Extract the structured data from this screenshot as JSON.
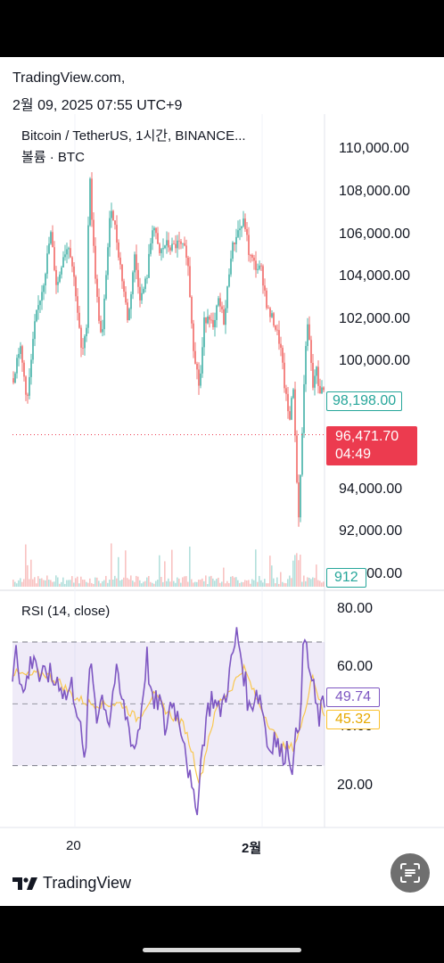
{
  "header": {
    "source": "TradingView.com,",
    "datetime": "2월 09, 2025 07:55 UTC+9"
  },
  "chart_data": [
    {
      "type": "candlestick",
      "title": "Bitcoin / TetherUS, 1시간, BINANCE...",
      "subtitle": "볼륨 · BTC",
      "ylim": [
        89600,
        110800
      ],
      "yticks": [
        "110,000.00",
        "108,000.00",
        "106,000.00",
        "104,000.00",
        "102,000.00",
        "100,000.00",
        "94,000.00",
        "92,000.00",
        "90,000.00"
      ],
      "ytick_values": [
        110000,
        108000,
        106000,
        104000,
        102000,
        100000,
        94000,
        92000,
        90000
      ],
      "xticks": [
        "20",
        "2월"
      ],
      "xtick_positions": [
        0.2,
        0.8
      ],
      "price_path": [
        [
          0,
          99000
        ],
        [
          0.02,
          100500
        ],
        [
          0.045,
          98000
        ],
        [
          0.07,
          101500
        ],
        [
          0.1,
          103500
        ],
        [
          0.12,
          105500
        ],
        [
          0.14,
          103000
        ],
        [
          0.16,
          104500
        ],
        [
          0.18,
          105000
        ],
        [
          0.2,
          103000
        ],
        [
          0.22,
          100000
        ],
        [
          0.235,
          101000
        ],
        [
          0.245,
          108700
        ],
        [
          0.255,
          105500
        ],
        [
          0.27,
          102500
        ],
        [
          0.285,
          100500
        ],
        [
          0.3,
          104000
        ],
        [
          0.315,
          106800
        ],
        [
          0.33,
          105500
        ],
        [
          0.35,
          103500
        ],
        [
          0.37,
          101500
        ],
        [
          0.39,
          104500
        ],
        [
          0.41,
          102500
        ],
        [
          0.43,
          103500
        ],
        [
          0.45,
          106000
        ],
        [
          0.47,
          104500
        ],
        [
          0.49,
          105000
        ],
        [
          0.51,
          104800
        ],
        [
          0.53,
          105000
        ],
        [
          0.56,
          104600
        ],
        [
          0.58,
          100500
        ],
        [
          0.595,
          99000
        ],
        [
          0.6,
          98500
        ],
        [
          0.615,
          101500
        ],
        [
          0.63,
          102000
        ],
        [
          0.645,
          101000
        ],
        [
          0.66,
          102500
        ],
        [
          0.68,
          101500
        ],
        [
          0.7,
          104500
        ],
        [
          0.72,
          105500
        ],
        [
          0.745,
          106000
        ],
        [
          0.76,
          104500
        ],
        [
          0.78,
          104000
        ],
        [
          0.8,
          103800
        ],
        [
          0.82,
          102000
        ],
        [
          0.84,
          101500
        ],
        [
          0.86,
          100500
        ],
        [
          0.875,
          98500
        ],
        [
          0.89,
          97000
        ],
        [
          0.9,
          99000
        ],
        [
          0.91,
          96000
        ],
        [
          0.918,
          92500
        ],
        [
          0.925,
          94500
        ],
        [
          0.935,
          98000
        ],
        [
          0.945,
          101500
        ],
        [
          0.955,
          100500
        ],
        [
          0.965,
          98500
        ],
        [
          0.975,
          99500
        ],
        [
          0.985,
          98500
        ],
        [
          1.0,
          98400
        ]
      ],
      "horizontal_line": 96471.7,
      "labels": {
        "last": "98,198.00",
        "current": "96,471.70",
        "countdown": "04:49",
        "volume": "912"
      },
      "colors": {
        "up": "#26a69a",
        "down": "#ef5350",
        "current": "#ec3b4f"
      }
    },
    {
      "type": "line",
      "title": "RSI (14, close)",
      "ylim": [
        10,
        85
      ],
      "yticks": [
        "80.00",
        "60.00",
        "40.00",
        "20.00"
      ],
      "ytick_values": [
        80,
        60,
        40,
        20
      ],
      "bands": [
        70,
        50,
        30
      ],
      "rsi_path": [
        [
          0,
          58
        ],
        [
          0.01,
          72
        ],
        [
          0.02,
          62
        ],
        [
          0.035,
          52
        ],
        [
          0.05,
          60
        ],
        [
          0.07,
          67
        ],
        [
          0.09,
          56
        ],
        [
          0.11,
          61
        ],
        [
          0.13,
          57
        ],
        [
          0.15,
          58
        ],
        [
          0.17,
          52
        ],
        [
          0.19,
          56
        ],
        [
          0.21,
          48
        ],
        [
          0.23,
          30
        ],
        [
          0.24,
          45
        ],
        [
          0.25,
          66
        ],
        [
          0.27,
          47
        ],
        [
          0.29,
          53
        ],
        [
          0.31,
          44
        ],
        [
          0.33,
          60
        ],
        [
          0.35,
          51
        ],
        [
          0.37,
          44
        ],
        [
          0.39,
          35
        ],
        [
          0.41,
          45
        ],
        [
          0.43,
          66
        ],
        [
          0.45,
          48
        ],
        [
          0.47,
          52
        ],
        [
          0.49,
          41
        ],
        [
          0.51,
          52
        ],
        [
          0.53,
          46
        ],
        [
          0.55,
          40
        ],
        [
          0.57,
          24
        ],
        [
          0.58,
          18
        ],
        [
          0.59,
          15
        ],
        [
          0.6,
          28
        ],
        [
          0.62,
          45
        ],
        [
          0.64,
          53
        ],
        [
          0.66,
          47
        ],
        [
          0.68,
          52
        ],
        [
          0.7,
          62
        ],
        [
          0.72,
          73
        ],
        [
          0.74,
          61
        ],
        [
          0.76,
          47
        ],
        [
          0.78,
          55
        ],
        [
          0.8,
          50
        ],
        [
          0.82,
          35
        ],
        [
          0.84,
          40
        ],
        [
          0.86,
          33
        ],
        [
          0.88,
          36
        ],
        [
          0.9,
          30
        ],
        [
          0.91,
          40
        ],
        [
          0.92,
          46
        ],
        [
          0.935,
          72
        ],
        [
          0.95,
          62
        ],
        [
          0.965,
          54
        ],
        [
          0.98,
          45
        ],
        [
          1.0,
          49.74
        ]
      ],
      "ma_path": [
        [
          0,
          60
        ],
        [
          0.05,
          59
        ],
        [
          0.1,
          60
        ],
        [
          0.15,
          57
        ],
        [
          0.2,
          52
        ],
        [
          0.25,
          50
        ],
        [
          0.3,
          50
        ],
        [
          0.35,
          50
        ],
        [
          0.4,
          45
        ],
        [
          0.45,
          53
        ],
        [
          0.5,
          47
        ],
        [
          0.55,
          43
        ],
        [
          0.58,
          33
        ],
        [
          0.6,
          24
        ],
        [
          0.63,
          40
        ],
        [
          0.66,
          50
        ],
        [
          0.7,
          55
        ],
        [
          0.74,
          62
        ],
        [
          0.78,
          52
        ],
        [
          0.82,
          44
        ],
        [
          0.86,
          36
        ],
        [
          0.9,
          36
        ],
        [
          0.93,
          44
        ],
        [
          0.96,
          60
        ],
        [
          1.0,
          45.32
        ]
      ],
      "labels": {
        "rsi": "49.74",
        "ma": "45.32"
      },
      "colors": {
        "rsi": "#7e57c2",
        "ma": "#f9c74f",
        "band": "rgba(126,87,194,0.12)"
      }
    }
  ],
  "footer": {
    "logo_text": "TradingView"
  }
}
